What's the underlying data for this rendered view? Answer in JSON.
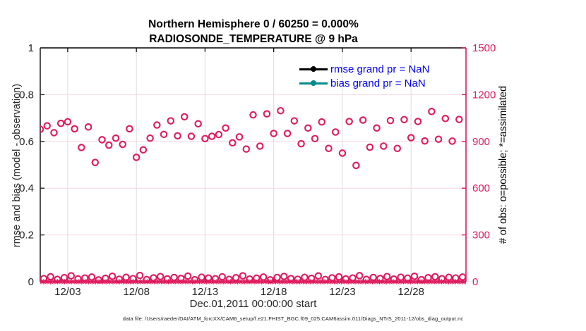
{
  "title": {
    "line1": "Northern Hemisphere 0 / 60250 = 0.000%",
    "line2": "RADIOSONDE_TEMPERATURE @ 9 hPa"
  },
  "legend": {
    "text_color": "#0000ff",
    "items": [
      {
        "name": "rmse",
        "label": "rmse grand pr = NaN",
        "color": "#000000"
      },
      {
        "name": "bias",
        "label": "bias grand pr = NaN",
        "color": "#008b8b"
      }
    ]
  },
  "footer": {
    "datafile": "data file: /Users/raeder/DAI/ATM_forcXX/CAM6_setup/f.e21.FHIST_BGC.f09_025.CAM6assim.011/Diags_NTrS_2011-12/obs_diag_output.nc"
  },
  "chart_data": {
    "type": "scatter",
    "title": "Northern Hemisphere 0 / 60250 = 0.000% | RADIOSONDE_TEMPERATURE @ 9 hPa",
    "xlabel": "Dec.01,2011 00:00:00 start",
    "ylabel_left": "rmse and bias (model - observation)",
    "ylabel_right": "# of obs: o=possible; *=assimilated",
    "ylim_left": [
      0,
      1
    ],
    "ylim_right": [
      0,
      1500
    ],
    "yticks_left": [
      0,
      0.2,
      0.4,
      0.6,
      0.8,
      1
    ],
    "yticks_right": [
      0,
      300,
      600,
      900,
      1200,
      1500
    ],
    "x_range_days": [
      0,
      31
    ],
    "xticks": [
      {
        "day": 2,
        "label": "12/03"
      },
      {
        "day": 7,
        "label": "12/08"
      },
      {
        "day": 12,
        "label": "12/13"
      },
      {
        "day": 17,
        "label": "12/18"
      },
      {
        "day": 22,
        "label": "12/23"
      },
      {
        "day": 27,
        "label": "12/28"
      }
    ],
    "grid": {
      "vertical_color": "#dcdcdc",
      "horizontal_color": "#f7d7e1"
    },
    "axis_colors": {
      "left": "#262626",
      "right": "#e1195c",
      "frame": "#000000"
    },
    "marker_color": "#e1195c",
    "series": [
      {
        "name": "num_possible_synoptic",
        "axis": "right",
        "marker": "o",
        "x_start_day": 0.0,
        "x_step_days": 0.5,
        "values": [
          978,
          1000,
          956,
          1016,
          1026,
          981,
          861,
          993,
          765,
          911,
          876,
          921,
          881,
          981,
          798,
          846,
          921,
          1005,
          945,
          1032,
          936,
          1058,
          933,
          1013,
          918,
          933,
          944,
          986,
          891,
          929,
          851,
          1070,
          870,
          1077,
          951,
          1097,
          951,
          1032,
          885,
          986,
          918,
          1025,
          855,
          960,
          825,
          1028,
          746,
          1037,
          863,
          986,
          870,
          1034,
          855,
          1040,
          924,
          1028,
          903,
          1092,
          914,
          1047,
          902,
          1041
        ]
      },
      {
        "name": "num_possible_offsynoptic",
        "axis": "right",
        "marker": "o",
        "x_start_day": 0.25,
        "x_step_days": 0.5,
        "values": [
          20,
          32,
          15,
          26,
          38,
          18,
          24,
          30,
          12,
          22,
          35,
          16,
          28,
          20,
          40,
          14,
          25,
          33,
          18,
          27,
          21,
          36,
          13,
          29,
          24,
          19,
          31,
          15,
          26,
          38,
          17,
          23,
          30,
          12,
          27,
          34,
          20,
          16,
          28,
          22,
          37,
          14,
          25,
          31,
          18,
          24,
          39,
          15,
          27,
          21,
          33,
          17,
          29,
          23,
          35,
          13,
          26,
          32,
          19,
          28,
          24,
          30
        ]
      },
      {
        "name": "num_assimilated",
        "axis": "right",
        "marker": "*",
        "x_start_day": 0.0,
        "x_step_days": 0.252,
        "constant_value": 0,
        "count": 124
      }
    ]
  }
}
